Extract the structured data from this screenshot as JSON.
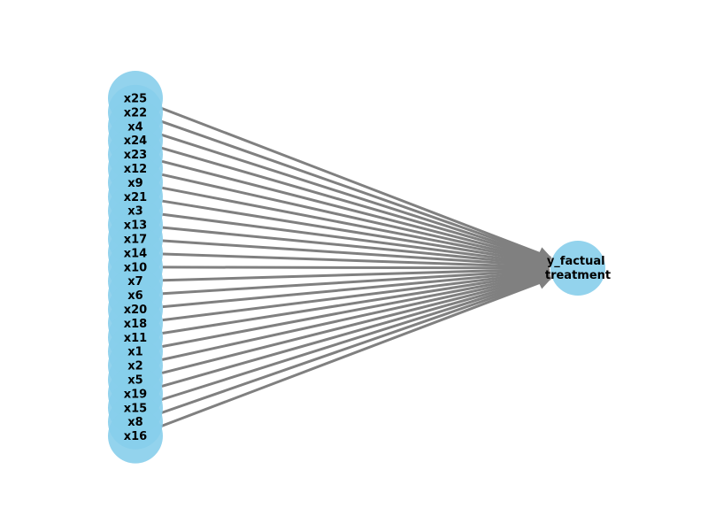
{
  "graph": {
    "node_color": "#87ceeb",
    "edge_color": "#808080",
    "label_color": "#000000",
    "sources": [
      "x25",
      "x22",
      "x4",
      "x24",
      "x23",
      "x12",
      "x9",
      "x21",
      "x3",
      "x13",
      "x17",
      "x14",
      "x10",
      "x7",
      "x6",
      "x20",
      "x18",
      "x11",
      "x1",
      "x2",
      "x5",
      "x19",
      "x15",
      "x8",
      "x16"
    ],
    "target": {
      "lines": [
        "y_factual",
        "treatment"
      ]
    }
  }
}
